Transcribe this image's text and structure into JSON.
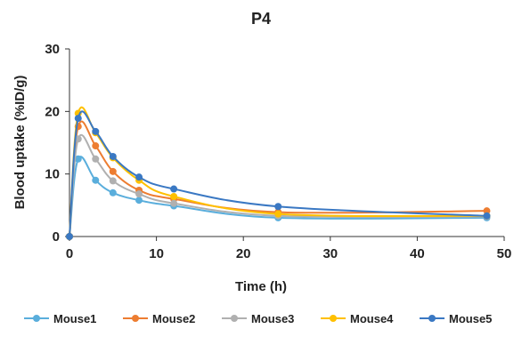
{
  "chart_data": {
    "type": "line",
    "title": "P4",
    "xlabel": "Time (h)",
    "ylabel": "Blood uptake (%ID/g)",
    "xlim": [
      0,
      50
    ],
    "ylim": [
      0,
      30
    ],
    "xticks": [
      0,
      10,
      20,
      30,
      40,
      50
    ],
    "yticks": [
      0,
      10,
      20,
      30
    ],
    "grid": false,
    "legend_position": "bottom",
    "x": [
      0,
      1,
      3,
      5,
      8,
      12,
      24,
      48
    ],
    "series": [
      {
        "name": "Mouse1",
        "color": "#5aaedc",
        "values": [
          0,
          12.4,
          9.0,
          7.0,
          5.8,
          4.9,
          3.0,
          3.0
        ]
      },
      {
        "name": "Mouse2",
        "color": "#ed7d31",
        "values": [
          0,
          17.6,
          14.5,
          10.4,
          7.4,
          6.0,
          3.9,
          4.1
        ]
      },
      {
        "name": "Mouse3",
        "color": "#b0b0b0",
        "values": [
          0,
          15.6,
          12.4,
          8.9,
          6.8,
          5.3,
          3.3,
          3.2
        ]
      },
      {
        "name": "Mouse4",
        "color": "#ffc000",
        "values": [
          0,
          19.7,
          16.6,
          12.6,
          9.0,
          6.4,
          3.6,
          3.3
        ]
      },
      {
        "name": "Mouse5",
        "color": "#3a78c3",
        "values": [
          0,
          18.9,
          16.8,
          12.8,
          9.5,
          7.6,
          4.8,
          3.3
        ]
      }
    ]
  }
}
